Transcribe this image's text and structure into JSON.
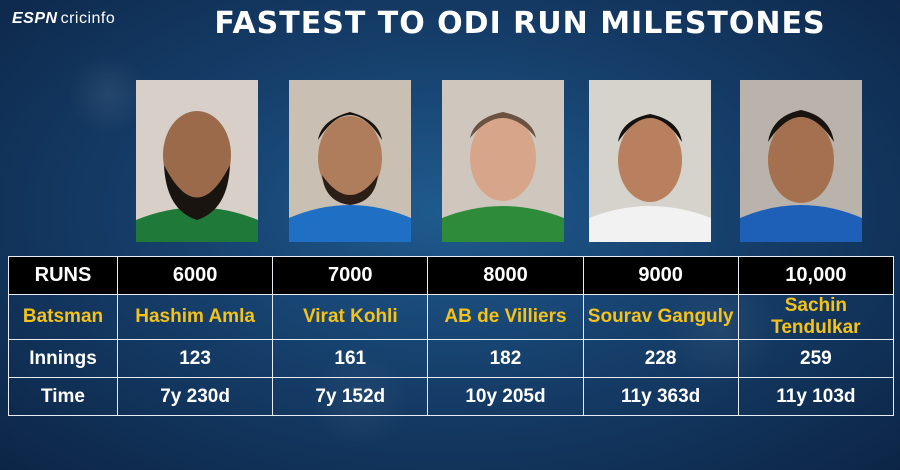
{
  "header": {
    "logo_espn": "ESPN",
    "logo_cricinfo": "cricinfo",
    "title": "FASTEST TO ODI RUN MILESTONES"
  },
  "table": {
    "labels": {
      "runs": "RUNS",
      "batsman": "Batsman",
      "innings": "Innings",
      "time": "Time"
    },
    "columns": [
      {
        "runs": "6000",
        "batsman": "Hashim Amla",
        "innings": "123",
        "time": "7y 230d",
        "jersey": "#1f7a3a"
      },
      {
        "runs": "7000",
        "batsman": "Virat Kohli",
        "innings": "161",
        "time": "7y 152d",
        "jersey": "#1f6fc4"
      },
      {
        "runs": "8000",
        "batsman": "AB de Villiers",
        "innings": "182",
        "time": "10y 205d",
        "jersey": "#2e8b3a"
      },
      {
        "runs": "9000",
        "batsman": "Sourav Ganguly",
        "innings": "228",
        "time": "11y 363d",
        "jersey": "#f2f2f2"
      },
      {
        "runs": "10,000",
        "batsman": "Sachin Tendulkar",
        "innings": "259",
        "time": "11y 103d",
        "jersey": "#1e5fb8"
      }
    ]
  },
  "colors": {
    "accent_text": "#f4c21a",
    "header_row": "#000000"
  }
}
